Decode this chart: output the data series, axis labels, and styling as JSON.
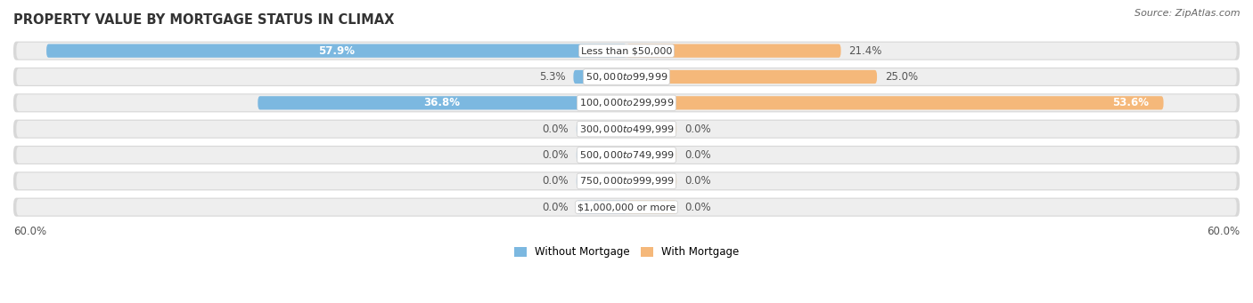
{
  "title": "PROPERTY VALUE BY MORTGAGE STATUS IN CLIMAX",
  "source": "Source: ZipAtlas.com",
  "categories": [
    "Less than $50,000",
    "$50,000 to $99,999",
    "$100,000 to $299,999",
    "$300,000 to $499,999",
    "$500,000 to $749,999",
    "$750,000 to $999,999",
    "$1,000,000 or more"
  ],
  "without_mortgage": [
    57.9,
    5.3,
    36.8,
    0.0,
    0.0,
    0.0,
    0.0
  ],
  "with_mortgage": [
    21.4,
    25.0,
    53.6,
    0.0,
    0.0,
    0.0,
    0.0
  ],
  "without_mortgage_color": "#7cb8e0",
  "with_mortgage_color": "#f5b87a",
  "without_mortgage_color_0": "#acd0ec",
  "with_mortgage_color_0": "#f5d4a8",
  "row_bg_color": "#e4e4e4",
  "row_bg_color2": "#f0f0f0",
  "axis_limit": 60.0,
  "stub_size": 5.0,
  "title_fontsize": 10.5,
  "source_fontsize": 8,
  "label_fontsize": 8.5,
  "category_fontsize": 8,
  "legend_fontsize": 8.5,
  "figsize": [
    14.06,
    3.41
  ],
  "dpi": 100
}
